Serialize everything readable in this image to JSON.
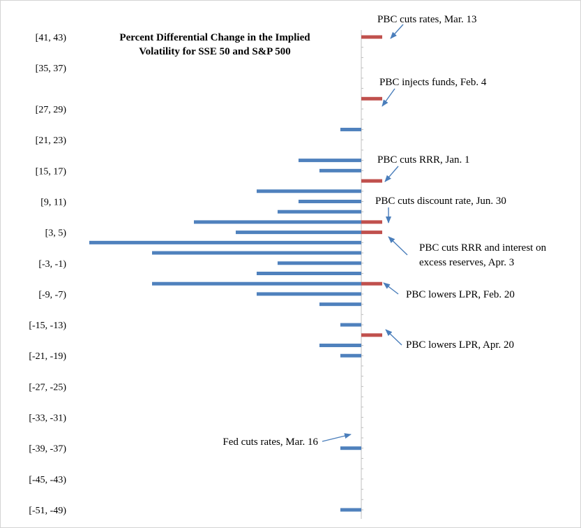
{
  "chart_data": {
    "type": "bar",
    "orientation": "horizontal",
    "title": [
      "Percent Differential Change in the Implied",
      "Volatility  for SSE 50 and S&P 500"
    ],
    "xlabel": "",
    "ylabel": "",
    "grid": false,
    "legend": "none",
    "category_labels": [
      "[41, 43)",
      "[35, 37)",
      "[27, 29)",
      "[21, 23)",
      "[15, 17)",
      "[9, 11)",
      "[3, 5)",
      "[-3, -1)",
      "[-9, -7)",
      "[-15, -13)",
      "[-21, -19)",
      "[-27, -25)",
      "[-33, -31)",
      "[-39, -37)",
      "[-45, -43)",
      "[-51, -49)"
    ],
    "bin_start": 43,
    "bin_width": 2,
    "bin_count": 47,
    "colors": {
      "frequency": "#4f81bd",
      "event": "#c0504d",
      "axis": "#bfbfbf",
      "arrow": "#4a7ebb"
    },
    "series": [
      {
        "bins": [
          "[23, 25)",
          "[17, 19)",
          "[15, 17)",
          "[11, 13)",
          "[9, 11)",
          "[7, 9)",
          "[5, 7)",
          "[3, 5)",
          "[1, 3)",
          "[-1, 1)",
          "[-3, -1)",
          "[-5, -3)",
          "[-7, -5)",
          "[-9, -7)",
          "[-11, -9)",
          "[-15, -13)",
          "[-19, -17)",
          "[-21, -19)",
          "[-39, -37)",
          "[-51, -49)"
        ],
        "values": [
          -1,
          -3,
          -2,
          -5,
          -3,
          -4,
          -8,
          -6,
          -13,
          -10,
          -4,
          -5,
          -10,
          -5,
          -2,
          -1,
          -2,
          -1,
          -1,
          -1
        ]
      },
      {
        "bins": [
          "[41, 43)",
          "[29, 31)",
          "[13, 15)",
          "[5, 7)",
          "[3, 5)",
          "[-7, -5)",
          "[-17, -15)"
        ],
        "values": [
          1,
          1,
          1,
          1,
          1,
          1,
          1
        ]
      }
    ],
    "annotations": [
      {
        "text": [
          "PBC cuts rates, Mar. 13"
        ],
        "bin": "[41, 43)"
      },
      {
        "text": [
          "PBC injects funds, Feb. 4"
        ],
        "bin": "[29, 31)"
      },
      {
        "text": [
          "PBC cuts RRR, Jan. 1"
        ],
        "bin": "[13, 15)"
      },
      {
        "text": [
          "PBC cuts discount rate, Jun. 30"
        ],
        "bin": "[5, 7)"
      },
      {
        "text": [
          "PBC cuts RRR and interest on",
          "excess reserves, Apr. 3"
        ],
        "bin": "[3, 5)"
      },
      {
        "text": [
          "PBC lowers LPR, Feb. 20"
        ],
        "bin": "[-7, -5)"
      },
      {
        "text": [
          "PBC lowers LPR, Apr. 20"
        ],
        "bin": "[-17, -15)"
      },
      {
        "text": [
          "Fed cuts rates, Mar. 16"
        ],
        "bin": "[-39, -37)"
      }
    ]
  }
}
